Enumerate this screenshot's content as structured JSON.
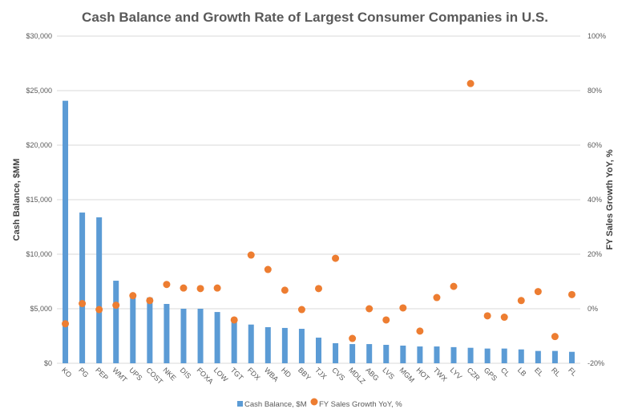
{
  "chart_data": {
    "type": "bar",
    "title": "Cash Balance and Growth Rate of Largest Consumer Companies in U.S.",
    "xlabel": "",
    "ylabel": "Cash Balance, $MM",
    "y2label": "FY Sales Growth YoY, %",
    "ylim": [
      0,
      30000
    ],
    "y2lim": [
      -20,
      100
    ],
    "yticks": [
      "$0",
      "$5,000",
      "$10,000",
      "$15,000",
      "$20,000",
      "$25,000",
      "$30,000"
    ],
    "ytick_values": [
      0,
      5000,
      10000,
      15000,
      20000,
      25000,
      30000
    ],
    "y2ticks": [
      "-20%",
      "0%",
      "20%",
      "40%",
      "60%",
      "80%",
      "100%"
    ],
    "y2tick_values": [
      -20,
      0,
      20,
      40,
      60,
      80,
      100
    ],
    "grid": true,
    "legend_position": "bottom",
    "categories": [
      "KO",
      "PG",
      "PEP",
      "WMT",
      "UPS",
      "COST",
      "NKE",
      "DIS",
      "FOXA",
      "LOW",
      "TGT",
      "FDX",
      "WBA",
      "HD",
      "BBY",
      "TJX",
      "CVS",
      "MDLZ",
      "ABG",
      "LVS",
      "MGM",
      "HOT",
      "TWX",
      "LYV",
      "CZR",
      "GPS",
      "CL",
      "LB",
      "EL",
      "RL",
      "FL"
    ],
    "series": [
      {
        "name": "Cash Balance, $M",
        "type": "bar",
        "axis": "left",
        "color": "#5B9BD5",
        "values": [
          24070,
          13820,
          13380,
          7570,
          6150,
          6030,
          5440,
          5000,
          5000,
          4700,
          3850,
          3550,
          3310,
          3240,
          3160,
          2350,
          1840,
          1760,
          1760,
          1690,
          1620,
          1540,
          1540,
          1480,
          1420,
          1350,
          1350,
          1270,
          1130,
          1130,
          1050
        ]
      },
      {
        "name": "FY Sales Growth  YoY, %",
        "type": "scatter",
        "axis": "right",
        "color": "#ED7D31",
        "values": [
          -5.5,
          1.9,
          -0.3,
          1.3,
          4.8,
          3.0,
          8.9,
          7.6,
          7.4,
          7.6,
          -4.1,
          19.7,
          14.4,
          6.8,
          -0.3,
          7.4,
          18.5,
          -10.9,
          0.0,
          -4.1,
          0.3,
          -8.2,
          4.1,
          8.2,
          82.6,
          -2.6,
          -3.1,
          3.0,
          6.3,
          -10.2,
          5.2
        ]
      }
    ]
  }
}
